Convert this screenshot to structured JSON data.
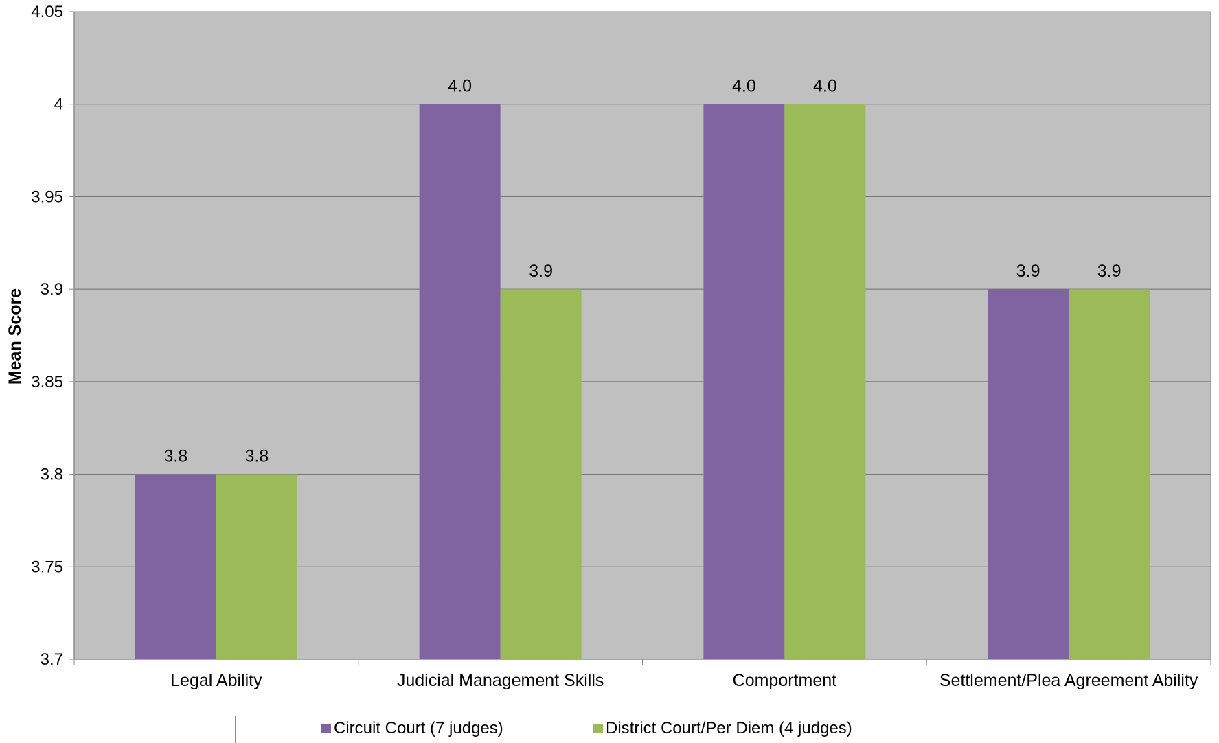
{
  "chart_data": {
    "type": "bar",
    "title": "",
    "xlabel": "",
    "ylabel": "Mean Score",
    "ylim": [
      3.7,
      4.05
    ],
    "yticks": [
      "3.7",
      "3.75",
      "3.8",
      "3.85",
      "3.9",
      "3.95",
      "4",
      "4.05"
    ],
    "grid": true,
    "legend_position": "bottom",
    "categories": [
      "Legal Ability",
      "Judicial Management Skills",
      "Comportment",
      "Settlement/Plea Agreement Ability"
    ],
    "series": [
      {
        "name": "Circuit Court (7 judges)",
        "color": "#8064a2",
        "values": [
          3.8,
          4.0,
          4.0,
          3.9
        ],
        "labels": [
          "3.8",
          "4.0",
          "4.0",
          "3.9"
        ]
      },
      {
        "name": "District Court/Per Diem (4 judges)",
        "color": "#9bbb59",
        "values": [
          3.8,
          3.9,
          4.0,
          3.9
        ],
        "labels": [
          "3.8",
          "3.9",
          "4.0",
          "3.9"
        ]
      }
    ],
    "plot_background": "#c0c0c0"
  }
}
